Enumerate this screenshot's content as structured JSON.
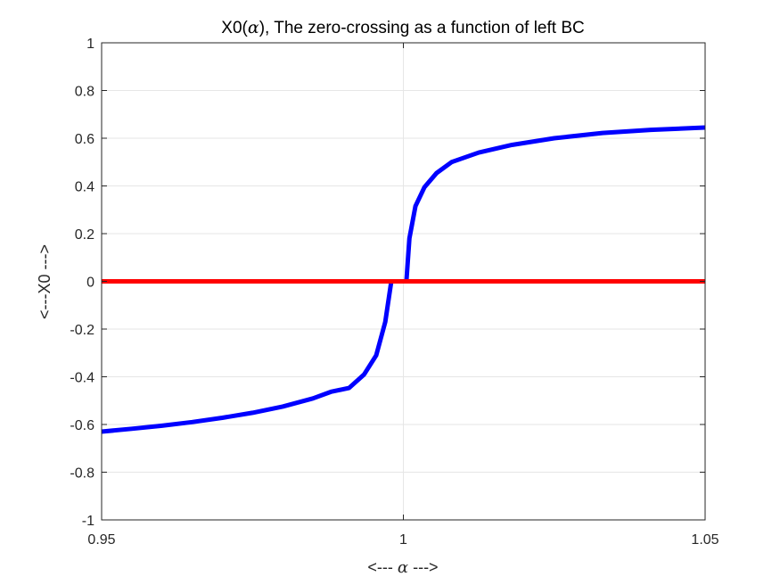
{
  "chart_data": {
    "type": "line",
    "title_parts": {
      "prefix": "X0(",
      "symbol": "α",
      "suffix": "), The zero-crossing as a function of left BC"
    },
    "xlabel_parts": {
      "prefix": "<--- ",
      "symbol": "α",
      "suffix": " --->"
    },
    "ylabel": "<---X0 --->",
    "xlim": [
      0.95,
      1.05
    ],
    "ylim": [
      -1,
      1
    ],
    "xticks": [
      0.95,
      1,
      1.05
    ],
    "xtick_labels": [
      "0.95",
      "1",
      "1.05"
    ],
    "yticks": [
      -1,
      -0.8,
      -0.6,
      -0.4,
      -0.2,
      0,
      0.2,
      0.4,
      0.6,
      0.8,
      1
    ],
    "ytick_labels": [
      "-1",
      "-0.8",
      "-0.6",
      "-0.4",
      "-0.2",
      "0",
      "0.2",
      "0.4",
      "0.6",
      "0.8",
      "1"
    ],
    "grid": true,
    "series": [
      {
        "color": "#0000ff",
        "x": [
          0.95,
          0.955,
          0.96,
          0.965,
          0.97,
          0.975,
          0.98,
          0.985,
          0.988,
          0.991,
          0.9935,
          0.9955,
          0.997,
          0.998,
          0.999,
          0.9995,
          1.0,
          1.0005,
          1.001,
          1.002,
          1.0035,
          1.0055,
          1.008,
          1.0125,
          1.018,
          1.025,
          1.033,
          1.041,
          1.05
        ],
        "y": [
          -0.63,
          -0.618,
          -0.605,
          -0.59,
          -0.572,
          -0.551,
          -0.525,
          -0.491,
          -0.463,
          -0.447,
          -0.39,
          -0.31,
          -0.17,
          0.0,
          0.0,
          0.0,
          0.0,
          0.0,
          0.18,
          0.315,
          0.395,
          0.454,
          0.5,
          0.54,
          0.572,
          0.6,
          0.622,
          0.635,
          0.645
        ]
      },
      {
        "color": "#ff0000",
        "x": [
          0.95,
          1.05
        ],
        "y": [
          0,
          0
        ]
      }
    ]
  }
}
